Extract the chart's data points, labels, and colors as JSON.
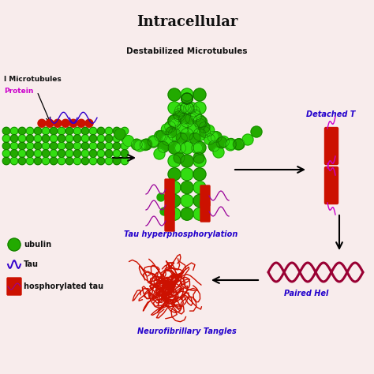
{
  "title": "Intracellular",
  "bg_color": "#f8ecec",
  "title_color": "#111111",
  "title_fontsize": 13,
  "labels": {
    "stabilized": "l Microtubules",
    "protein": "Protein",
    "destabilized": "Destabilized Microtubules",
    "tau_hyper": "Tau hyperphosphorylation",
    "detached": "Detached T",
    "paired": "Paired Hel",
    "tangles": "Neurofibrillary Tangles",
    "tubulin": "ubulin",
    "tau": "Tau",
    "phospho": "hosphorylated tau"
  },
  "label_colors": {
    "stabilized": "#111111",
    "protein": "#cc00cc",
    "destabilized": "#111111",
    "tau_hyper": "#2200cc",
    "detached": "#2200cc",
    "paired": "#2200cc",
    "tangles": "#2200cc",
    "tubulin": "#111111",
    "tau": "#111111",
    "phospho": "#111111"
  },
  "green_bright": "#33dd11",
  "green_mid": "#22aa00",
  "green_dark": "#116600",
  "red_color": "#cc1100",
  "maroon_color": "#990033",
  "blue_color": "#3300cc",
  "purple_color": "#990099",
  "magenta_color": "#cc00cc"
}
